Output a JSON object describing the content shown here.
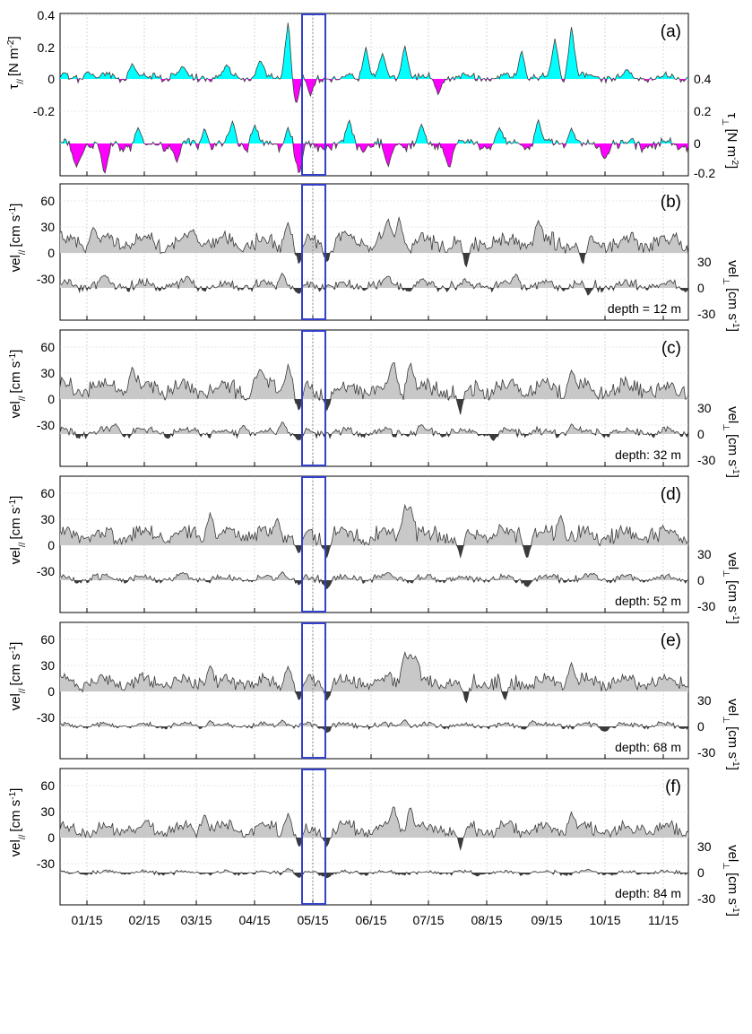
{
  "chart_data": [
    {
      "type": "area",
      "panel": "(a)",
      "left_label_main": "τ",
      "left_label_sub": "//",
      "left_label_unit": "[N m",
      "left_label_exp": "-2",
      "left_label_close": "]",
      "right_label_main": "τ",
      "right_label_sub": "⊥",
      "right_label_unit": "[N m",
      "right_label_exp": "-2",
      "right_label_close": "]",
      "left_ticks": [
        "0.4",
        "0.2",
        "0",
        "-0.2"
      ],
      "right_ticks": [
        "0.4",
        "0.2",
        "0",
        "-0.2"
      ],
      "ylim": [
        -0.2,
        0.4
      ],
      "positive_color": "#00ffff",
      "negative_color": "#ff00ff",
      "series": [
        {
          "name": "τ//",
          "peaks": [
            [
              0.5,
              0.05
            ],
            [
              1.3,
              0.1
            ],
            [
              2.2,
              0.08
            ],
            [
              3.0,
              0.09
            ],
            [
              3.6,
              0.12
            ],
            [
              4.1,
              0.35
            ],
            [
              4.25,
              -0.16
            ],
            [
              4.5,
              -0.11
            ],
            [
              5.5,
              0.2
            ],
            [
              5.8,
              0.16
            ],
            [
              6.2,
              0.21
            ],
            [
              6.8,
              -0.1
            ],
            [
              8.3,
              0.18
            ],
            [
              8.9,
              0.25
            ],
            [
              9.2,
              0.33
            ],
            [
              10.2,
              0.06
            ]
          ]
        },
        {
          "name": "τ⊥",
          "peaks": [
            [
              0.3,
              -0.15
            ],
            [
              0.8,
              -0.2
            ],
            [
              1.4,
              0.1
            ],
            [
              2.1,
              -0.12
            ],
            [
              2.6,
              0.1
            ],
            [
              3.1,
              0.14
            ],
            [
              3.5,
              0.12
            ],
            [
              4.1,
              0.1
            ],
            [
              4.3,
              -0.2
            ],
            [
              5.2,
              0.15
            ],
            [
              5.9,
              -0.15
            ],
            [
              6.5,
              0.12
            ],
            [
              7.0,
              -0.16
            ],
            [
              7.9,
              0.1
            ],
            [
              8.6,
              0.15
            ],
            [
              9.2,
              0.1
            ],
            [
              9.8,
              -0.1
            ]
          ]
        }
      ]
    },
    {
      "type": "area",
      "panel": "(b)",
      "depth_label": "depth = 12 m",
      "left_label_main": "vel",
      "left_label_sub": "//",
      "left_label_unit": "[cm s",
      "left_label_exp": "-1",
      "left_label_close": "]",
      "right_label_main": "vel",
      "right_label_sub": "⊥",
      "right_label_unit": "[cm s",
      "right_label_exp": "-1",
      "right_label_close": "]",
      "left_ticks": [
        "60",
        "30",
        "0",
        "-30"
      ],
      "right_ticks": [
        "30",
        "0",
        "-30"
      ],
      "along": {
        "mean": 12,
        "amp": 12,
        "peaks": [
          [
            0.6,
            30
          ],
          [
            2.4,
            27
          ],
          [
            4.1,
            35
          ],
          [
            4.3,
            -15
          ],
          [
            4.8,
            -10
          ],
          [
            5.9,
            40
          ],
          [
            6.1,
            42
          ],
          [
            7.3,
            -18
          ],
          [
            8.6,
            38
          ],
          [
            9.4,
            -15
          ]
        ]
      },
      "cross": {
        "mean": 3,
        "amp": 7,
        "peaks": [
          [
            0.8,
            15
          ],
          [
            2.3,
            14
          ],
          [
            4.0,
            18
          ],
          [
            4.3,
            -8
          ],
          [
            5.9,
            14
          ],
          [
            8.2,
            16
          ],
          [
            9.5,
            -9
          ]
        ]
      },
      "fill_color": "#c8c8c8",
      "neg_color": "#3a3a3a"
    },
    {
      "type": "area",
      "panel": "(c)",
      "depth_label": "depth: 32 m",
      "left_label_main": "vel",
      "left_label_sub": "//",
      "left_label_unit": "[cm s",
      "left_label_exp": "-1",
      "left_label_close": "]",
      "right_label_main": "vel",
      "right_label_sub": "⊥",
      "right_label_unit": "[cm s",
      "right_label_exp": "-1",
      "right_label_close": "]",
      "left_ticks": [
        "60",
        "30",
        "0",
        "-30"
      ],
      "right_ticks": [
        "30",
        "0",
        "-30"
      ],
      "along": {
        "mean": 12,
        "amp": 12,
        "peaks": [
          [
            1.3,
            38
          ],
          [
            3.6,
            36
          ],
          [
            4.1,
            40
          ],
          [
            4.3,
            -15
          ],
          [
            4.8,
            -13
          ],
          [
            6.0,
            45
          ],
          [
            6.3,
            44
          ],
          [
            7.2,
            -18
          ],
          [
            9.2,
            34
          ]
        ]
      },
      "cross": {
        "mean": 2,
        "amp": 6,
        "peaks": [
          [
            1.0,
            12
          ],
          [
            3.3,
            11
          ],
          [
            4.0,
            15
          ],
          [
            4.3,
            -8
          ],
          [
            6.5,
            11
          ],
          [
            9.2,
            12
          ],
          [
            7.8,
            -8
          ]
        ]
      },
      "fill_color": "#c8c8c8",
      "neg_color": "#3a3a3a"
    },
    {
      "type": "area",
      "panel": "(d)",
      "depth_label": "depth: 52 m",
      "left_label_main": "vel",
      "left_label_sub": "//",
      "left_label_unit": "[cm s",
      "left_label_exp": "-1",
      "left_label_close": "]",
      "right_label_main": "vel",
      "right_label_sub": "⊥",
      "right_label_unit": "[cm s",
      "right_label_exp": "-1",
      "right_label_close": "]",
      "left_ticks": [
        "60",
        "30",
        "0",
        "-30"
      ],
      "right_ticks": [
        "30",
        "0",
        "-30"
      ],
      "along": {
        "mean": 12,
        "amp": 11,
        "peaks": [
          [
            2.7,
            38
          ],
          [
            3.9,
            32
          ],
          [
            4.3,
            -12
          ],
          [
            4.8,
            -14
          ],
          [
            6.2,
            47
          ],
          [
            6.3,
            48
          ],
          [
            7.2,
            -14
          ],
          [
            8.4,
            -16
          ],
          [
            9.0,
            36
          ]
        ]
      },
      "cross": {
        "mean": 2,
        "amp": 5,
        "peaks": [
          [
            2.2,
            9
          ],
          [
            4.0,
            10
          ],
          [
            4.3,
            -6
          ],
          [
            4.8,
            -10
          ],
          [
            5.9,
            9
          ],
          [
            8.4,
            -8
          ],
          [
            9.6,
            8
          ]
        ]
      },
      "fill_color": "#c8c8c8",
      "neg_color": "#3a3a3a"
    },
    {
      "type": "area",
      "panel": "(e)",
      "depth_label": "depth: 68 m",
      "left_label_main": "vel",
      "left_label_sub": "//",
      "left_label_unit": "[cm s",
      "left_label_exp": "-1",
      "left_label_close": "]",
      "right_label_main": "vel",
      "right_label_sub": "⊥",
      "right_label_unit": "[cm s",
      "right_label_exp": "-1",
      "right_label_close": "]",
      "left_ticks": [
        "60",
        "30",
        "0",
        "-30"
      ],
      "right_ticks": [
        "30",
        "0",
        "-30"
      ],
      "along": {
        "mean": 11,
        "amp": 10,
        "peaks": [
          [
            2.7,
            30
          ],
          [
            4.1,
            29
          ],
          [
            4.3,
            -12
          ],
          [
            4.8,
            -10
          ],
          [
            6.2,
            46
          ],
          [
            6.3,
            45
          ],
          [
            6.4,
            42
          ],
          [
            7.3,
            -15
          ],
          [
            8.0,
            -12
          ],
          [
            9.2,
            34
          ]
        ]
      },
      "cross": {
        "mean": 1,
        "amp": 4,
        "peaks": [
          [
            2.7,
            7
          ],
          [
            4.0,
            8
          ],
          [
            4.8,
            -7
          ],
          [
            6.2,
            8
          ],
          [
            8.5,
            7
          ],
          [
            9.8,
            -6
          ]
        ]
      },
      "fill_color": "#c8c8c8",
      "neg_color": "#3a3a3a"
    },
    {
      "type": "area",
      "panel": "(f)",
      "depth_label": "depth: 84 m",
      "left_label_main": "vel",
      "left_label_sub": "//",
      "left_label_unit": "[cm s",
      "left_label_exp": "-1",
      "left_label_close": "]",
      "right_label_main": "vel",
      "right_label_sub": "⊥",
      "right_label_unit": "[cm s",
      "right_label_exp": "-1",
      "right_label_close": "]",
      "left_ticks": [
        "60",
        "30",
        "0",
        "-30"
      ],
      "right_ticks": [
        "30",
        "0",
        "-30"
      ],
      "along": {
        "mean": 10,
        "amp": 9,
        "peaks": [
          [
            2.6,
            28
          ],
          [
            4.1,
            28
          ],
          [
            4.3,
            -12
          ],
          [
            4.8,
            -10
          ],
          [
            6.0,
            38
          ],
          [
            6.3,
            37
          ],
          [
            7.2,
            -14
          ],
          [
            9.2,
            30
          ]
        ]
      },
      "cross": {
        "mean": 0,
        "amp": 3,
        "peaks": [
          [
            4.1,
            5
          ],
          [
            4.3,
            -6
          ],
          [
            4.8,
            -6
          ],
          [
            7.5,
            -4
          ],
          [
            9.5,
            4
          ]
        ]
      },
      "fill_color": "#c8c8c8",
      "neg_color": "#3a3a3a"
    }
  ],
  "x_axis": {
    "tick_labels": [
      "01/15",
      "02/15",
      "03/15",
      "04/15",
      "05/15",
      "06/15",
      "07/15",
      "08/15",
      "09/15",
      "10/15",
      "11/15"
    ]
  },
  "highlight": {
    "description": "blue box marking mid-May event",
    "color": "#3340cc"
  }
}
